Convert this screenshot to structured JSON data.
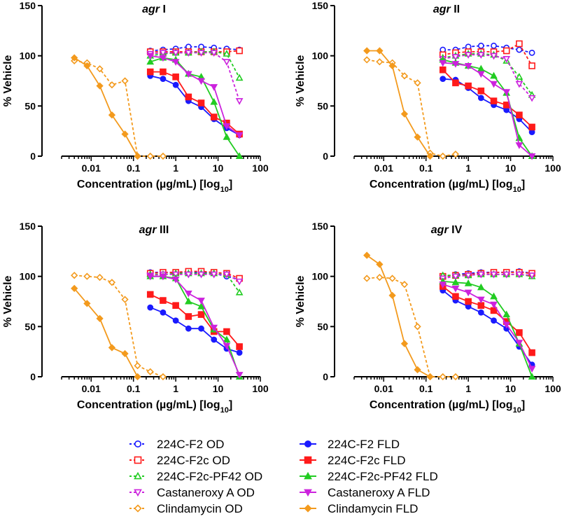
{
  "legend": [
    {
      "name": "224C-F2 OD",
      "color": "#1a1aff",
      "marker": "circle-open",
      "dashed": true
    },
    {
      "name": "224C-F2c OD",
      "color": "#ff1a1a",
      "marker": "square-open",
      "dashed": true
    },
    {
      "name": "224C-F2c-PF42 OD",
      "color": "#22cc22",
      "marker": "triangle-open",
      "dashed": true
    },
    {
      "name": "Castaneroxy A OD",
      "color": "#cc22dd",
      "marker": "triangle-down-open",
      "dashed": true
    },
    {
      "name": "Clindamycin OD",
      "color": "#f39a1d",
      "marker": "diamond-open",
      "dashed": true
    },
    {
      "name": "224C-F2 FLD",
      "color": "#1a1aff",
      "marker": "circle",
      "dashed": false
    },
    {
      "name": "224C-F2c FLD",
      "color": "#ff1a1a",
      "marker": "square",
      "dashed": false
    },
    {
      "name": "224C-F2c-PF42 FLD",
      "color": "#22cc22",
      "marker": "triangle",
      "dashed": false
    },
    {
      "name": "Castaneroxy A FLD",
      "color": "#cc22dd",
      "marker": "triangle-down",
      "dashed": false
    },
    {
      "name": "Clindamycin FLD",
      "color": "#f39a1d",
      "marker": "diamond",
      "dashed": false
    }
  ],
  "chart_data": [
    {
      "type": "line",
      "title": "agr I",
      "title_italic": "agr",
      "title_rest": " I",
      "xlabel": "Concentration (µg/mL) [log10]",
      "ylabel": "% Vehicle",
      "xscale": "log",
      "xlim": [
        0.002,
        100
      ],
      "ylim": [
        0,
        150
      ],
      "xticks": [
        "0.01",
        "0.1",
        "1",
        "10",
        "100"
      ],
      "yticks": [
        "0",
        "50",
        "100",
        "150"
      ],
      "series": [
        {
          "name": "224C-F2 OD",
          "x": [
            0.25,
            0.5,
            1,
            2,
            4,
            8,
            16,
            32
          ],
          "y": [
            105,
            106,
            107,
            109,
            109,
            108,
            107,
            106
          ]
        },
        {
          "name": "224C-F2c OD",
          "x": [
            0.25,
            0.5,
            1,
            2,
            4,
            8,
            16,
            32
          ],
          "y": [
            104,
            104,
            104,
            104,
            104,
            104,
            104,
            105
          ]
        },
        {
          "name": "224C-F2c-PF42 OD",
          "x": [
            0.25,
            0.5,
            1,
            2,
            4,
            8,
            16,
            32
          ],
          "y": [
            100,
            102,
            103,
            103,
            104,
            104,
            102,
            78
          ]
        },
        {
          "name": "Castaneroxy A OD",
          "x": [
            0.25,
            0.5,
            1,
            2,
            4,
            8,
            16,
            32
          ],
          "y": [
            102,
            103,
            103,
            103,
            103,
            103,
            94,
            55
          ]
        },
        {
          "name": "Clindamycin OD",
          "x": [
            0.004,
            0.008,
            0.016,
            0.031,
            0.063,
            0.125,
            0.25,
            0.5
          ],
          "y": [
            95,
            93,
            87,
            71,
            75,
            0,
            0,
            0
          ]
        },
        {
          "name": "224C-F2 FLD",
          "x": [
            0.25,
            0.5,
            1,
            2,
            4,
            8,
            16,
            32
          ],
          "y": [
            80,
            77,
            71,
            55,
            49,
            37,
            28,
            21
          ]
        },
        {
          "name": "224C-F2c FLD",
          "x": [
            0.25,
            0.5,
            1,
            2,
            4,
            8,
            16,
            32
          ],
          "y": [
            84,
            84,
            79,
            59,
            53,
            39,
            33,
            22
          ]
        },
        {
          "name": "224C-F2c-PF42 FLD",
          "x": [
            0.25,
            0.5,
            1,
            2,
            4,
            8,
            16,
            32
          ],
          "y": [
            94,
            98,
            96,
            82,
            79,
            54,
            19,
            0
          ]
        },
        {
          "name": "Castaneroxy A FLD",
          "x": [
            0.25,
            0.5,
            1,
            2,
            4,
            8,
            16,
            32
          ],
          "y": [
            100,
            98,
            94,
            82,
            75,
            69,
            30,
            21
          ]
        },
        {
          "name": "Clindamycin FLD",
          "x": [
            0.004,
            0.008,
            0.016,
            0.031,
            0.063,
            0.125
          ],
          "y": [
            98,
            90,
            70,
            41,
            22,
            0
          ]
        }
      ]
    },
    {
      "type": "line",
      "title": "agr II",
      "title_italic": "agr",
      "title_rest": " II",
      "xlabel": "Concentration (µg/mL) [log10]",
      "ylabel": "% Vehicle",
      "xscale": "log",
      "xlim": [
        0.002,
        100
      ],
      "ylim": [
        0,
        150
      ],
      "xticks": [
        "0.01",
        "0.1",
        "1",
        "10",
        "100"
      ],
      "yticks": [
        "0",
        "50",
        "100",
        "150"
      ],
      "series": [
        {
          "name": "224C-F2 OD",
          "x": [
            0.25,
            0.5,
            1,
            2,
            4,
            8,
            16,
            32
          ],
          "y": [
            106,
            106,
            109,
            110,
            110,
            108,
            106,
            103
          ]
        },
        {
          "name": "224C-F2c OD",
          "x": [
            0.25,
            0.5,
            1,
            2,
            4,
            8,
            16,
            32
          ],
          "y": [
            101,
            103,
            104,
            104,
            104,
            105,
            112,
            90
          ]
        },
        {
          "name": "224C-F2c-PF42 OD",
          "x": [
            0.25,
            0.5,
            1,
            2,
            4,
            8,
            16,
            32
          ],
          "y": [
            98,
            100,
            102,
            102,
            101,
            95,
            79,
            61
          ]
        },
        {
          "name": "Castaneroxy A OD",
          "x": [
            0.25,
            0.5,
            1,
            2,
            4,
            8,
            16,
            32
          ],
          "y": [
            97,
            99,
            101,
            101,
            100,
            97,
            72,
            58
          ]
        },
        {
          "name": "Clindamycin OD",
          "x": [
            0.004,
            0.008,
            0.016,
            0.031,
            0.063,
            0.125,
            0.25,
            0.5
          ],
          "y": [
            96,
            94,
            93,
            80,
            73,
            3,
            0,
            2
          ]
        },
        {
          "name": "224C-F2 FLD",
          "x": [
            0.25,
            0.5,
            1,
            2,
            4,
            8,
            16,
            32
          ],
          "y": [
            77,
            76,
            68,
            58,
            51,
            46,
            37,
            24
          ]
        },
        {
          "name": "224C-F2c FLD",
          "x": [
            0.25,
            0.5,
            1,
            2,
            4,
            8,
            16,
            32
          ],
          "y": [
            86,
            73,
            70,
            65,
            55,
            51,
            41,
            29
          ]
        },
        {
          "name": "224C-F2c-PF42 FLD",
          "x": [
            0.25,
            0.5,
            1,
            2,
            4,
            8,
            16,
            32
          ],
          "y": [
            96,
            93,
            90,
            87,
            80,
            63,
            18,
            0
          ]
        },
        {
          "name": "Castaneroxy A FLD",
          "x": [
            0.25,
            0.5,
            1,
            2,
            4,
            8,
            16,
            32
          ],
          "y": [
            93,
            92,
            90,
            82,
            72,
            64,
            11,
            0
          ]
        },
        {
          "name": "Clindamycin FLD",
          "x": [
            0.004,
            0.008,
            0.016,
            0.031,
            0.063,
            0.125
          ],
          "y": [
            105,
            105,
            90,
            42,
            19,
            0
          ]
        }
      ]
    },
    {
      "type": "line",
      "title": "agr III",
      "title_italic": "agr",
      "title_rest": " III",
      "xlabel": "Concentration (µg/mL) [log10]",
      "ylabel": "% Vehicle",
      "xscale": "log",
      "xlim": [
        0.002,
        100
      ],
      "ylim": [
        0,
        150
      ],
      "xticks": [
        "0.01",
        "0.1",
        "1",
        "10",
        "100"
      ],
      "yticks": [
        "0",
        "50",
        "100",
        "150"
      ],
      "series": [
        {
          "name": "224C-F2 OD",
          "x": [
            0.25,
            0.5,
            1,
            2,
            4,
            8,
            16,
            32
          ],
          "y": [
            104,
            104,
            104,
            104,
            104,
            103,
            100,
            97
          ]
        },
        {
          "name": "224C-F2c OD",
          "x": [
            0.25,
            0.5,
            1,
            2,
            4,
            8,
            16,
            32
          ],
          "y": [
            103,
            104,
            104,
            105,
            105,
            104,
            103,
            98
          ]
        },
        {
          "name": "224C-F2c-PF42 OD",
          "x": [
            0.25,
            0.5,
            1,
            2,
            4,
            8,
            16,
            32
          ],
          "y": [
            102,
            102,
            103,
            103,
            103,
            103,
            102,
            84
          ]
        },
        {
          "name": "Castaneroxy A OD",
          "x": [
            0.25,
            0.5,
            1,
            2,
            4,
            8,
            16,
            32
          ],
          "y": [
            101,
            102,
            102,
            102,
            102,
            102,
            102,
            95
          ]
        },
        {
          "name": "Clindamycin OD",
          "x": [
            0.004,
            0.008,
            0.016,
            0.031,
            0.063,
            0.125,
            0.25,
            0.5
          ],
          "y": [
            101,
            100,
            99,
            94,
            77,
            11,
            5,
            0
          ]
        },
        {
          "name": "224C-F2 FLD",
          "x": [
            0.25,
            0.5,
            1,
            2,
            4,
            8,
            16,
            32
          ],
          "y": [
            69,
            64,
            56,
            48,
            48,
            37,
            28,
            24
          ]
        },
        {
          "name": "224C-F2c FLD",
          "x": [
            0.25,
            0.5,
            1,
            2,
            4,
            8,
            16,
            32
          ],
          "y": [
            82,
            76,
            71,
            60,
            62,
            45,
            45,
            30
          ]
        },
        {
          "name": "224C-F2c-PF42 FLD",
          "x": [
            0.25,
            0.5,
            1,
            2,
            4,
            8,
            16,
            32
          ],
          "y": [
            100,
            100,
            98,
            75,
            70,
            47,
            37,
            0
          ]
        },
        {
          "name": "Castaneroxy A FLD",
          "x": [
            0.25,
            0.5,
            1,
            2,
            4,
            8,
            16,
            32
          ],
          "y": [
            100,
            100,
            97,
            83,
            76,
            49,
            31,
            2
          ]
        },
        {
          "name": "Clindamycin FLD",
          "x": [
            0.004,
            0.008,
            0.016,
            0.031,
            0.063,
            0.125
          ],
          "y": [
            88,
            73,
            58,
            29,
            23,
            0
          ]
        }
      ]
    },
    {
      "type": "line",
      "title": "agr IV",
      "title_italic": "agr",
      "title_rest": " IV",
      "xlabel": "Concentration (µg/mL) [log10]",
      "ylabel": "% Vehicle",
      "xscale": "log",
      "xlim": [
        0.002,
        100
      ],
      "ylim": [
        0,
        150
      ],
      "xticks": [
        "0.01",
        "0.1",
        "1",
        "10",
        "100"
      ],
      "yticks": [
        "0",
        "50",
        "100",
        "150"
      ],
      "series": [
        {
          "name": "224C-F2 OD",
          "x": [
            0.25,
            0.5,
            1,
            2,
            4,
            8,
            16,
            32
          ],
          "y": [
            99,
            102,
            103,
            104,
            104,
            104,
            105,
            103
          ]
        },
        {
          "name": "224C-F2c OD",
          "x": [
            0.25,
            0.5,
            1,
            2,
            4,
            8,
            16,
            32
          ],
          "y": [
            100,
            101,
            102,
            103,
            104,
            104,
            104,
            103
          ]
        },
        {
          "name": "224C-F2c-PF42 OD",
          "x": [
            0.25,
            0.5,
            1,
            2,
            4,
            8,
            16,
            32
          ],
          "y": [
            101,
            101,
            101,
            102,
            102,
            102,
            102,
            100
          ]
        },
        {
          "name": "Castaneroxy A OD",
          "x": [
            0.25,
            0.5,
            1,
            2,
            4,
            8,
            16,
            32
          ],
          "y": [
            98,
            100,
            101,
            102,
            102,
            102,
            102,
            101
          ]
        },
        {
          "name": "Clindamycin OD",
          "x": [
            0.004,
            0.008,
            0.016,
            0.031,
            0.063,
            0.125,
            0.25,
            0.5
          ],
          "y": [
            98,
            99,
            98,
            92,
            50,
            0,
            0,
            0
          ]
        },
        {
          "name": "224C-F2 FLD",
          "x": [
            0.25,
            0.5,
            1,
            2,
            4,
            8,
            16,
            32
          ],
          "y": [
            86,
            76,
            70,
            64,
            56,
            48,
            30,
            12
          ]
        },
        {
          "name": "224C-F2c FLD",
          "x": [
            0.25,
            0.5,
            1,
            2,
            4,
            8,
            16,
            32
          ],
          "y": [
            90,
            80,
            75,
            71,
            66,
            55,
            44,
            24
          ]
        },
        {
          "name": "224C-F2c-PF42 FLD",
          "x": [
            0.25,
            0.5,
            1,
            2,
            4,
            8,
            16,
            32
          ],
          "y": [
            95,
            94,
            93,
            89,
            80,
            62,
            33,
            0
          ]
        },
        {
          "name": "Castaneroxy A FLD",
          "x": [
            0.25,
            0.5,
            1,
            2,
            4,
            8,
            16,
            32
          ],
          "y": [
            92,
            88,
            84,
            77,
            72,
            52,
            34,
            8
          ]
        },
        {
          "name": "Clindamycin FLD",
          "x": [
            0.004,
            0.008,
            0.016,
            0.031,
            0.063,
            0.125
          ],
          "y": [
            121,
            112,
            81,
            33,
            7,
            0
          ]
        }
      ]
    }
  ]
}
